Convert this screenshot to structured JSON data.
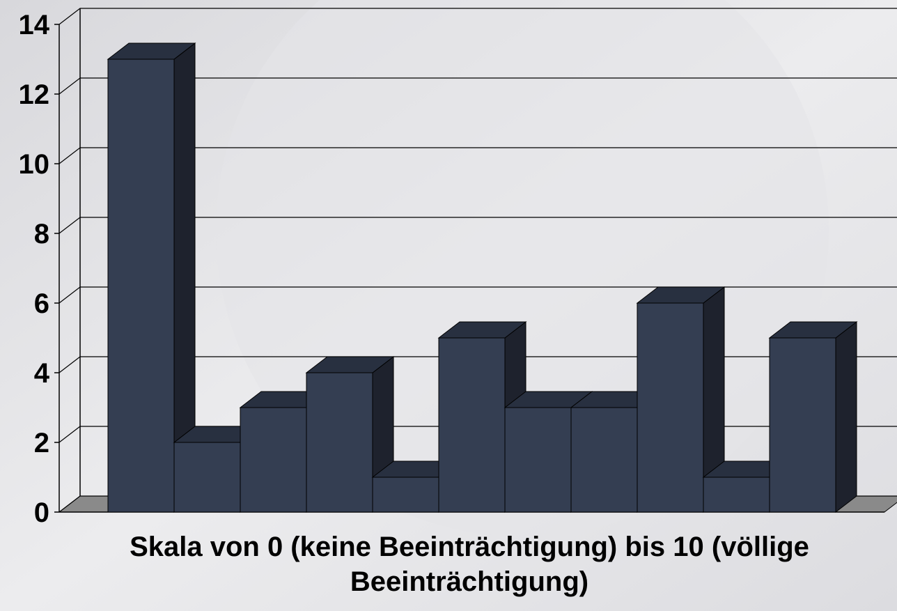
{
  "chart_data": {
    "type": "bar3d",
    "x_label": "Skala von 0 (keine Beeinträchtigung) bis 10 (völlige Beeinträchtigung)",
    "values": [
      13,
      2,
      3,
      4,
      1,
      5,
      3,
      3,
      6,
      1,
      5
    ],
    "color": "#343e52",
    "ylim": [
      0,
      14
    ],
    "yticks": [
      0,
      2,
      4,
      6,
      8,
      10,
      12,
      14
    ],
    "grid": true
  }
}
